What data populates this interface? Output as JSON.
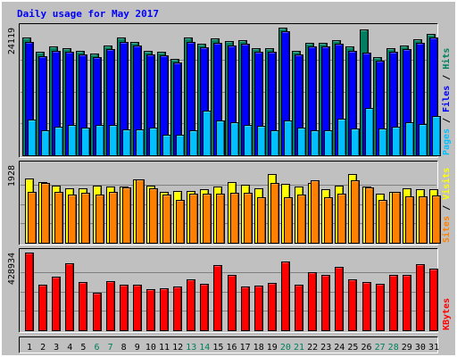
{
  "chart_data": {
    "type": "bar",
    "title": "Daily usage for May 2017",
    "categories": [
      "1",
      "2",
      "3",
      "4",
      "5",
      "6",
      "7",
      "8",
      "9",
      "10",
      "11",
      "12",
      "13",
      "14",
      "15",
      "16",
      "17",
      "18",
      "19",
      "20",
      "21",
      "22",
      "23",
      "24",
      "25",
      "26",
      "27",
      "28",
      "29",
      "30",
      "31"
    ],
    "weekend_days": [
      "6",
      "7",
      "13",
      "14",
      "20",
      "21",
      "27",
      "28"
    ],
    "panels": [
      {
        "id": "pages-files-hits",
        "scale_label": "24119",
        "ymax": 24119,
        "legend": [
          {
            "text": "Pages",
            "color": "#00c0ff"
          },
          {
            "text": "Files",
            "color": "#0000ff"
          },
          {
            "text": "Hits",
            "color": "#00805c"
          }
        ],
        "series": [
          {
            "name": "Hits",
            "color": "#008060",
            "values": [
              22300,
              19600,
              20500,
              20200,
              19700,
              19200,
              20700,
              22300,
              21500,
              19800,
              19600,
              18300,
              22300,
              21100,
              22100,
              21600,
              21700,
              20200,
              20300,
              24119,
              19700,
              21300,
              21200,
              21700,
              20600,
              23700,
              18600,
              20300,
              20700,
              21900,
              22900
            ]
          },
          {
            "name": "Files",
            "color": "#0000ff",
            "values": [
              21500,
              18800,
              19700,
              19500,
              19000,
              18500,
              20000,
              21500,
              20800,
              19000,
              18900,
              17500,
              21400,
              20400,
              21300,
              20800,
              21000,
              19500,
              19600,
              23500,
              19000,
              20500,
              20500,
              21000,
              19800,
              19400,
              17900,
              19600,
              20000,
              21200,
              22200
            ]
          },
          {
            "name": "Pages",
            "color": "#00c0ff",
            "values": [
              6800,
              4800,
              5400,
              5700,
              5300,
              5700,
              5800,
              4900,
              4900,
              5300,
              3900,
              3800,
              4800,
              8500,
              6600,
              6200,
              5800,
              5500,
              4700,
              6500,
              5300,
              4700,
              4700,
              6900,
              5100,
              8900,
              5100,
              5400,
              6300,
              5900,
              7400
            ]
          }
        ]
      },
      {
        "id": "visits-sites",
        "scale_label": "1928",
        "ymax": 1928,
        "legend": [
          {
            "text": "Sites",
            "color": "#ff8000"
          },
          {
            "text": "Visits",
            "color": "#ffff00"
          }
        ],
        "series": [
          {
            "name": "Visits",
            "color": "#ffff00",
            "values": [
              1600,
              1510,
              1410,
              1360,
              1350,
              1420,
              1400,
              1400,
              1570,
              1420,
              1270,
              1290,
              1290,
              1330,
              1400,
              1500,
              1440,
              1360,
              1700,
              1460,
              1400,
              1490,
              1320,
              1420,
              1710,
              1400,
              1220,
              1260,
              1350,
              1340,
              1320
            ]
          },
          {
            "name": "Sites",
            "color": "#ff8000",
            "values": [
              1260,
              1490,
              1270,
              1200,
              1230,
              1200,
              1270,
              1370,
              1580,
              1360,
              1200,
              1070,
              1210,
              1210,
              1220,
              1240,
              1240,
              1130,
              1490,
              1130,
              1200,
              1550,
              1140,
              1210,
              1550,
              1380,
              1060,
              1270,
              1150,
              1160,
              1170
            ]
          }
        ]
      },
      {
        "id": "kbytes",
        "scale_label": "428934",
        "ymax": 428934,
        "legend": [
          {
            "text": "KBytes",
            "color": "#ff0000"
          }
        ],
        "series": [
          {
            "name": "KBytes",
            "color": "#ff0000",
            "values": [
              428934,
              252000,
              296000,
              372000,
              264000,
              209000,
              273000,
              250000,
              250000,
              228000,
              230000,
              240000,
              280000,
              254000,
              362000,
              308000,
              240000,
              246000,
              263000,
              380000,
              250000,
              322000,
              306000,
              352000,
              283000,
              267000,
              258000,
              308000,
              307000,
              364000,
              340000
            ]
          }
        ]
      }
    ]
  }
}
